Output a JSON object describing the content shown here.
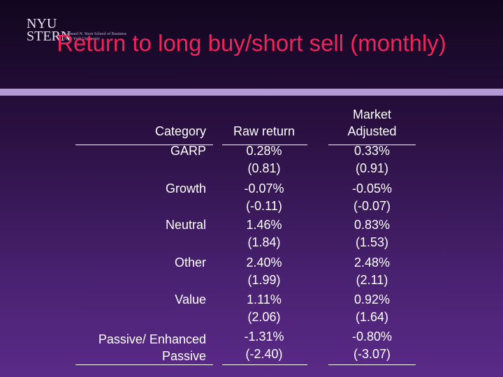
{
  "logo": {
    "line1": "NYU",
    "line2": "STERN",
    "subtitle1": "Leonard N. Stern School of Business",
    "subtitle2": "New York University"
  },
  "title": "Return to long buy/short sell (monthly)",
  "table": {
    "header": [
      "Category",
      "Raw return",
      "Market Adjusted"
    ],
    "rows": [
      [
        "GARP",
        "0.28%",
        "(0.81)",
        "0.33%",
        "(0.91)"
      ],
      [
        "Growth",
        "-0.07%",
        "(-0.11)",
        "-0.05%",
        "(-0.07)"
      ],
      [
        "Neutral",
        "1.46%",
        "(1.84)",
        "0.83%",
        "(1.53)"
      ],
      [
        "Other",
        "2.40%",
        "(1.99)",
        "2.48%",
        "(2.11)"
      ],
      [
        "Value",
        "1.11%",
        "(2.06)",
        "0.92%",
        "(1.64)"
      ],
      [
        "Passive/ Enhanced Passive",
        "-1.31%",
        "(-2.40)",
        "-0.80%",
        "(-3.07)"
      ]
    ]
  }
}
